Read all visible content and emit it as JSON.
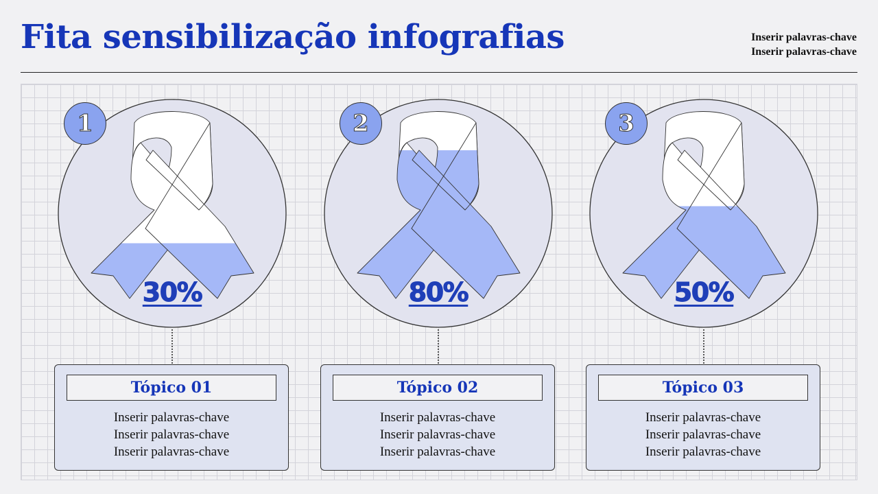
{
  "header": {
    "title": "Fita sensibilização infografias",
    "keywords": [
      "Inserir palavras-chave",
      "Inserir palavras-chave"
    ]
  },
  "colors": {
    "accent": "#1636b8",
    "ribbon_fill": "#a5b8f7",
    "ribbon_empty": "#ffffff",
    "circle": "#e2e3ef",
    "badge": "#8aa3ef"
  },
  "items": [
    {
      "number": "1",
      "percent_label": "30%",
      "fill": 0.3,
      "topic": "Tópico 01",
      "lines": [
        "Inserir palavras-chave",
        "Inserir palavras-chave",
        "Inserir palavras-chave"
      ]
    },
    {
      "number": "2",
      "percent_label": "80%",
      "fill": 0.8,
      "topic": "Tópico 02",
      "lines": [
        "Inserir palavras-chave",
        "Inserir palavras-chave",
        "Inserir palavras-chave"
      ]
    },
    {
      "number": "3",
      "percent_label": "50%",
      "fill": 0.5,
      "topic": "Tópico 03",
      "lines": [
        "Inserir palavras-chave",
        "Inserir palavras-chave",
        "Inserir palavras-chave"
      ]
    }
  ]
}
